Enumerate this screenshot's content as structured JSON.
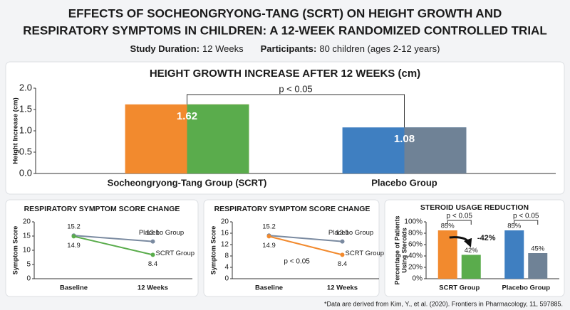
{
  "header": {
    "title_lines": [
      "EFFECTS OF SOCHEONGRYONG-TANG (SCRT) ON HEIGHT GROWTH AND",
      "RESPIRATORY SYMPTOMS IN CHILDREN: A 12-WEEK RANDOMIZED CONTROLLED TRIAL"
    ],
    "duration_label": "Study Duration:",
    "duration_value": "12 Weeks",
    "participants_label": "Participants:",
    "participants_value": "80 children (ages 2-12 years)"
  },
  "chart_data": [
    {
      "type": "bar",
      "title": "HEIGHT GROWTH INCREASE AFTER 12 WEEKS (cm)",
      "ylabel": "Height Increase (cm)",
      "categories": [
        "Socheongryong-Tang Group (SCRT)",
        "Placebo Group"
      ],
      "values": [
        1.62,
        1.08
      ],
      "colors": [
        [
          "#f28a2e",
          "#5aac4c"
        ],
        [
          "#3f7fc1",
          "#6f8296"
        ]
      ],
      "ylim": [
        0,
        2
      ],
      "yticks": [
        {
          "value": 0,
          "label": "0.0"
        },
        {
          "value": 0.5,
          "label": "0.5"
        },
        {
          "value": 1,
          "label": "1.0"
        },
        {
          "value": 1.5,
          "label": "1.5"
        },
        {
          "value": 2,
          "label": "2.0"
        }
      ],
      "annotations": [
        "p < 0.05"
      ]
    },
    {
      "type": "line",
      "title": "RESPIRATORY SYMPTOM SCORE CHANGE",
      "ylabel": "Symptom Score",
      "categories": [
        "Baseline",
        "12 Weeks"
      ],
      "series": [
        {
          "name": "Placebo Group",
          "color": "#7a8aa0",
          "values": [
            15.2,
            13.1
          ]
        },
        {
          "name": "SCRT Group",
          "color": "#5aac4c",
          "values": [
            14.9,
            8.4
          ]
        }
      ],
      "ylim": [
        0,
        20
      ],
      "yticks": [
        0,
        5,
        10,
        15,
        20
      ],
      "annotations": []
    },
    {
      "type": "line",
      "title": "RESPIRATORY SYMPTOM SCORE CHANGE",
      "ylabel": "Symptom Score",
      "categories": [
        "Baseline",
        "12 Weeks"
      ],
      "series": [
        {
          "name": "Placebo Group",
          "color": "#7a8aa0",
          "values": [
            15.2,
            13.1
          ]
        },
        {
          "name": "SCRT Group",
          "color": "#f28a2e",
          "values": [
            14.9,
            8.4
          ]
        }
      ],
      "ylim": [
        0,
        20
      ],
      "yticks": [
        0,
        4,
        8,
        12,
        16,
        20
      ],
      "annotations": [
        "p < 0.05"
      ]
    },
    {
      "type": "bar",
      "title": "STEROID USAGE REDUCTION",
      "ylabel": [
        "Percentage of Patients",
        "Using Steroids"
      ],
      "categories": [
        "SCRT Group",
        "Placebo Group"
      ],
      "series": [
        {
          "colors": [
            "#f28a2e",
            "#3f7fc1"
          ],
          "values": [
            85,
            85
          ],
          "value_labels": [
            "85%",
            "85%"
          ]
        },
        {
          "colors": [
            "#5aac4c",
            "#6f8296"
          ],
          "values": [
            42,
            45
          ],
          "value_labels": [
            "42%",
            "45%"
          ]
        }
      ],
      "ylim": [
        0,
        100
      ],
      "yticks": [
        {
          "value": 0,
          "label": "0%"
        },
        {
          "value": 20,
          "label": "20%"
        },
        {
          "value": 40,
          "label": "40%"
        },
        {
          "value": 60,
          "label": "60%"
        },
        {
          "value": 80,
          "label": "80%"
        },
        {
          "value": 100,
          "label": "100%"
        }
      ],
      "annotations": [
        "p < 0.05",
        "p < 0.05",
        "-42%"
      ]
    }
  ],
  "footnote": "*Data are derived from Kim, Y., et al. (2020). Frontiers in Pharmacology, 11, 597885."
}
